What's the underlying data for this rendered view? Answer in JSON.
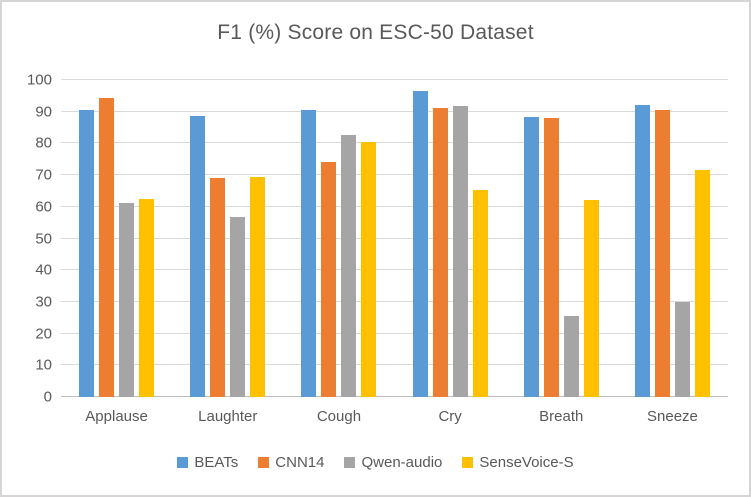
{
  "chart_data": {
    "type": "bar",
    "title": "F1 (%) Score on ESC-50 Dataset",
    "xlabel": "",
    "ylabel": "",
    "categories": [
      "Applause",
      "Laughter",
      "Cough",
      "Cry",
      "Breath",
      "Sneeze"
    ],
    "series": [
      {
        "name": "BEATs",
        "color": "#5B9BD5",
        "values": [
          90.6,
          88.7,
          90.5,
          96.5,
          88.3,
          92.2
        ]
      },
      {
        "name": "CNN14",
        "color": "#ED7D31",
        "values": [
          94.2,
          69.2,
          74.2,
          91.2,
          88.0,
          90.4
        ]
      },
      {
        "name": "Qwen-audio",
        "color": "#A5A5A5",
        "values": [
          61.2,
          56.9,
          82.8,
          91.8,
          25.5,
          29.9
        ]
      },
      {
        "name": "SenseVoice-S",
        "color": "#FFC000",
        "values": [
          62.5,
          69.5,
          80.5,
          65.3,
          62.0,
          71.6
        ]
      }
    ],
    "ylim": [
      0,
      100
    ],
    "ytick_step": 10,
    "grid": true,
    "legend_position": "bottom",
    "colors": {
      "title_text": "#595959",
      "axis_text": "#595959",
      "gridline": "#D9D9D9",
      "axis_line": "#BFBFBF",
      "background": "#FFFFFF",
      "frame_border": "#D6D4D4"
    }
  }
}
